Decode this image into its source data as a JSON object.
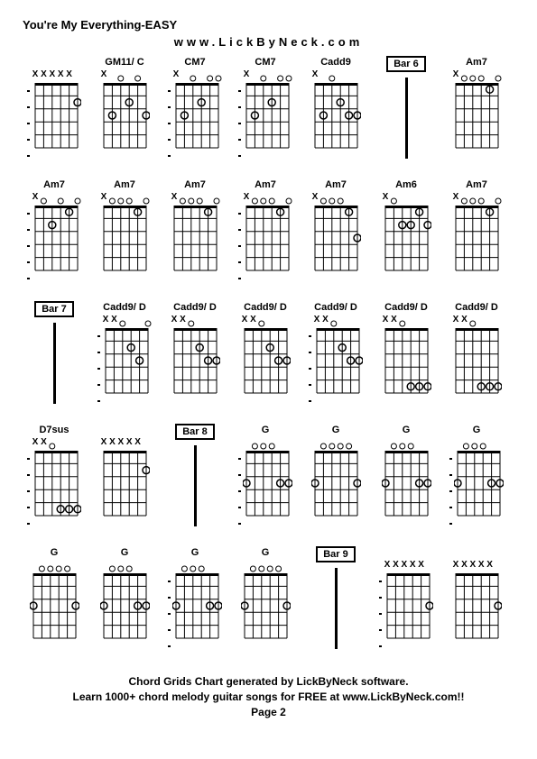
{
  "title": "You're My Everything-EASY",
  "subtitle": "www.LickByNeck.com",
  "footer_line1": "Chord Grids Chart generated by LickByNeck software.",
  "footer_line2": "Learn 1000+ chord melody guitar songs for FREE at www.LickByNeck.com!!",
  "footer_page": "Page 2",
  "grid_color": "#000000",
  "bg_color": "#ffffff",
  "strings": 6,
  "frets": 5,
  "diagram_width": 55,
  "diagram_height": 90,
  "rows": [
    [
      {
        "label": "",
        "type": "chord",
        "mutes": [
          0,
          1,
          2,
          3,
          4
        ],
        "opens": [],
        "dots": [
          [
            5,
            2
          ]
        ],
        "dashes": true
      },
      {
        "label": "GM11/ C",
        "type": "chord",
        "mutes": [
          0
        ],
        "opens": [
          2,
          4
        ],
        "dots": [
          [
            1,
            3
          ],
          [
            3,
            2
          ],
          [
            5,
            3
          ]
        ],
        "dashes": false
      },
      {
        "label": "CM7",
        "type": "chord",
        "mutes": [
          0
        ],
        "opens": [
          2,
          4,
          5
        ],
        "dots": [
          [
            1,
            3
          ],
          [
            3,
            2
          ]
        ],
        "dashes": true
      },
      {
        "label": "CM7",
        "type": "chord",
        "mutes": [
          0
        ],
        "opens": [
          2,
          4,
          5
        ],
        "dots": [
          [
            1,
            3
          ],
          [
            3,
            2
          ]
        ],
        "dashes": true
      },
      {
        "label": "Cadd9",
        "type": "chord",
        "mutes": [
          0
        ],
        "opens": [
          2
        ],
        "dots": [
          [
            1,
            3
          ],
          [
            3,
            2
          ],
          [
            4,
            3
          ],
          [
            5,
            3
          ]
        ],
        "dashes": false
      },
      {
        "label": "Bar 6",
        "type": "bar"
      },
      {
        "label": "Am7",
        "type": "chord",
        "mutes": [
          0
        ],
        "opens": [
          1,
          2,
          3,
          5
        ],
        "dots": [
          [
            4,
            1
          ]
        ],
        "dashes": false
      }
    ],
    [
      {
        "label": "Am7",
        "type": "chord",
        "mutes": [
          0
        ],
        "opens": [
          1,
          3,
          5
        ],
        "dots": [
          [
            2,
            2
          ],
          [
            4,
            1
          ]
        ],
        "dashes": true
      },
      {
        "label": "Am7",
        "type": "chord",
        "mutes": [
          0
        ],
        "opens": [
          1,
          2,
          3,
          5
        ],
        "dots": [
          [
            4,
            1
          ]
        ],
        "dashes": false
      },
      {
        "label": "Am7",
        "type": "chord",
        "mutes": [
          0
        ],
        "opens": [
          1,
          2,
          3,
          5
        ],
        "dots": [
          [
            4,
            1
          ]
        ],
        "dashes": false
      },
      {
        "label": "Am7",
        "type": "chord",
        "mutes": [
          0
        ],
        "opens": [
          1,
          2,
          3,
          5
        ],
        "dots": [
          [
            4,
            1
          ]
        ],
        "dashes": true
      },
      {
        "label": "Am7",
        "type": "chord",
        "mutes": [
          0
        ],
        "opens": [
          1,
          2,
          3
        ],
        "dots": [
          [
            4,
            1
          ],
          [
            5,
            3
          ]
        ],
        "dashes": false
      },
      {
        "label": "Am6",
        "type": "chord",
        "mutes": [
          0
        ],
        "opens": [
          1
        ],
        "dots": [
          [
            2,
            2
          ],
          [
            3,
            2
          ],
          [
            4,
            1
          ],
          [
            5,
            2
          ]
        ],
        "dashes": false
      },
      {
        "label": "Am7",
        "type": "chord",
        "mutes": [
          0
        ],
        "opens": [
          1,
          2,
          3,
          5
        ],
        "dots": [
          [
            4,
            1
          ]
        ],
        "dashes": false
      }
    ],
    [
      {
        "label": "Bar 7",
        "type": "bar"
      },
      {
        "label": "Cadd9/ D",
        "type": "chord",
        "mutes": [
          0,
          1
        ],
        "opens": [
          2,
          5
        ],
        "dots": [
          [
            3,
            2
          ],
          [
            4,
            3
          ]
        ],
        "dashes": true
      },
      {
        "label": "Cadd9/ D",
        "type": "chord",
        "mutes": [
          0,
          1
        ],
        "opens": [
          2
        ],
        "dots": [
          [
            3,
            2
          ],
          [
            4,
            3
          ],
          [
            5,
            3
          ]
        ],
        "dashes": false
      },
      {
        "label": "Cadd9/ D",
        "type": "chord",
        "mutes": [
          0,
          1
        ],
        "opens": [
          2
        ],
        "dots": [
          [
            3,
            2
          ],
          [
            4,
            3
          ],
          [
            5,
            3
          ]
        ],
        "dashes": false
      },
      {
        "label": "Cadd9/ D",
        "type": "chord",
        "mutes": [
          0,
          1
        ],
        "opens": [
          2
        ],
        "dots": [
          [
            3,
            2
          ],
          [
            4,
            3
          ],
          [
            5,
            3
          ]
        ],
        "dashes": true
      },
      {
        "label": "Cadd9/ D",
        "type": "chord",
        "mutes": [
          0,
          1
        ],
        "opens": [
          2
        ],
        "dots": [
          [
            3,
            5
          ],
          [
            4,
            5
          ],
          [
            5,
            5
          ]
        ],
        "dashes": false
      },
      {
        "label": "Cadd9/ D",
        "type": "chord",
        "mutes": [
          0,
          1
        ],
        "opens": [
          2
        ],
        "dots": [
          [
            3,
            5
          ],
          [
            4,
            5
          ],
          [
            5,
            5
          ]
        ],
        "dashes": false
      }
    ],
    [
      {
        "label": "D7sus",
        "type": "chord",
        "mutes": [
          0,
          1
        ],
        "opens": [
          2
        ],
        "dots": [
          [
            3,
            5
          ],
          [
            4,
            5
          ],
          [
            5,
            5
          ]
        ],
        "dashes": true
      },
      {
        "label": "",
        "type": "chord",
        "mutes": [
          0,
          1,
          2,
          3,
          4
        ],
        "opens": [],
        "dots": [
          [
            5,
            2
          ]
        ],
        "dashes": false
      },
      {
        "label": "Bar 8",
        "type": "bar"
      },
      {
        "label": "G",
        "type": "chord",
        "mutes": [],
        "opens": [
          1,
          2,
          3
        ],
        "dots": [
          [
            0,
            3
          ],
          [
            4,
            3
          ],
          [
            5,
            3
          ]
        ],
        "dashes": true
      },
      {
        "label": "G",
        "type": "chord",
        "mutes": [],
        "opens": [
          1,
          2,
          3,
          4
        ],
        "dots": [
          [
            0,
            3
          ],
          [
            5,
            3
          ]
        ],
        "dashes": false
      },
      {
        "label": "G",
        "type": "chord",
        "mutes": [],
        "opens": [
          1,
          2,
          3
        ],
        "dots": [
          [
            0,
            3
          ],
          [
            4,
            3
          ],
          [
            5,
            3
          ]
        ],
        "dashes": false
      },
      {
        "label": "G",
        "type": "chord",
        "mutes": [],
        "opens": [
          1,
          2,
          3
        ],
        "dots": [
          [
            0,
            3
          ],
          [
            4,
            3
          ],
          [
            5,
            3
          ]
        ],
        "dashes": true
      }
    ],
    [
      {
        "label": "G",
        "type": "chord",
        "mutes": [],
        "opens": [
          1,
          2,
          3,
          4
        ],
        "dots": [
          [
            0,
            3
          ],
          [
            5,
            3
          ]
        ],
        "dashes": false
      },
      {
        "label": "G",
        "type": "chord",
        "mutes": [],
        "opens": [
          1,
          2,
          3
        ],
        "dots": [
          [
            0,
            3
          ],
          [
            4,
            3
          ],
          [
            5,
            3
          ]
        ],
        "dashes": false
      },
      {
        "label": "G",
        "type": "chord",
        "mutes": [],
        "opens": [
          1,
          2,
          3
        ],
        "dots": [
          [
            0,
            3
          ],
          [
            4,
            3
          ],
          [
            5,
            3
          ]
        ],
        "dashes": true
      },
      {
        "label": "G",
        "type": "chord",
        "mutes": [],
        "opens": [
          1,
          2,
          3,
          4
        ],
        "dots": [
          [
            0,
            3
          ],
          [
            5,
            3
          ]
        ],
        "dashes": false
      },
      {
        "label": "Bar 9",
        "type": "bar"
      },
      {
        "label": "",
        "type": "chord",
        "mutes": [
          0,
          1,
          2,
          3,
          4
        ],
        "opens": [],
        "dots": [
          [
            5,
            3
          ]
        ],
        "dashes": true
      },
      {
        "label": "",
        "type": "chord",
        "mutes": [
          0,
          1,
          2,
          3,
          4
        ],
        "opens": [],
        "dots": [
          [
            5,
            3
          ]
        ],
        "dashes": false
      }
    ]
  ]
}
